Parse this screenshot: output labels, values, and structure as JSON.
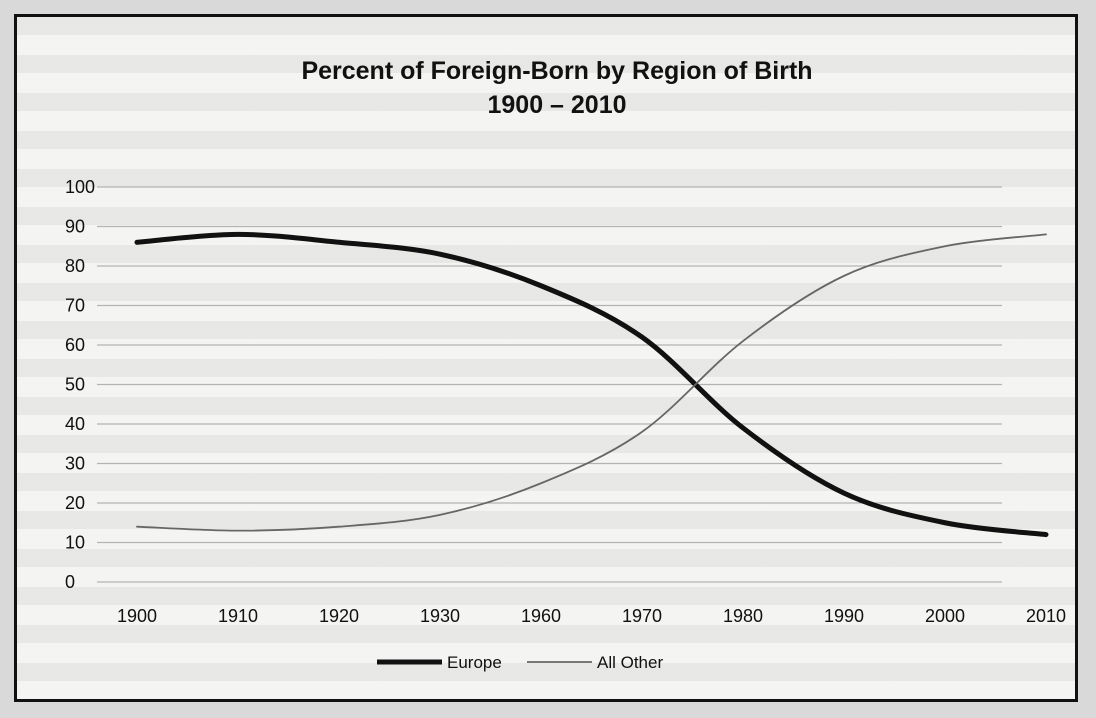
{
  "chart_data": {
    "type": "line",
    "title": "Percent of Foreign-Born by Region of Birth",
    "subtitle": "1900 – 2010",
    "categories": [
      "1900",
      "1910",
      "1920",
      "1930",
      "1960",
      "1970",
      "1980",
      "1990",
      "2000",
      "2010"
    ],
    "yticks": [
      "0",
      "10",
      "20",
      "30",
      "40",
      "50",
      "60",
      "70",
      "80",
      "90",
      "100"
    ],
    "ylim": [
      0,
      100
    ],
    "grid": true,
    "legend_position": "bottom",
    "series": [
      {
        "name": "Europe",
        "color": "#111111",
        "width": "thick",
        "values": [
          86,
          88,
          86,
          83,
          75,
          62,
          39,
          22.5,
          15,
          12
        ]
      },
      {
        "name": "All Other",
        "color": "#666666",
        "width": "thin",
        "values": [
          14,
          13,
          14,
          17,
          25,
          38,
          61,
          77.5,
          85,
          88
        ]
      }
    ]
  }
}
